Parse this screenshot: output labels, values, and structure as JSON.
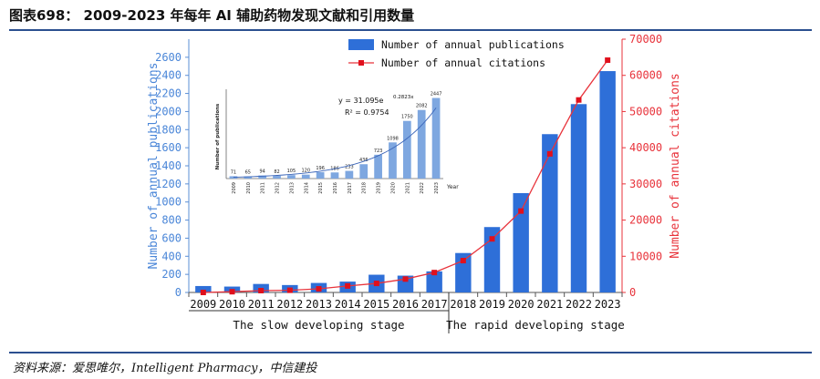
{
  "header": {
    "title": "图表698：   2009-2023 年每年 AI 辅助药物发现文献和引用数量"
  },
  "footer": {
    "source": "资料来源：爱思唯尔，Intelligent Pharmacy，中信建投"
  },
  "chart_data": [
    {
      "type": "bar+line",
      "categories": [
        "2009",
        "2010",
        "2011",
        "2012",
        "2013",
        "2014",
        "2015",
        "2016",
        "2017",
        "2018",
        "2019",
        "2020",
        "2021",
        "2022",
        "2023"
      ],
      "series": [
        {
          "name": "Number of annual publications",
          "type": "bar",
          "axis": "left",
          "color": "#2e6fd8",
          "values": [
            71,
            65,
            94,
            82,
            105,
            120,
            196,
            186,
            233,
            436,
            723,
            1098,
            1750,
            2082,
            2447
          ]
        },
        {
          "name": "Number of annual citations",
          "type": "line",
          "axis": "right",
          "color": "#e8333b",
          "values": [
            0,
            200,
            500,
            600,
            1000,
            1800,
            2500,
            3700,
            5500,
            8800,
            14800,
            22500,
            38300,
            53200,
            64200
          ]
        }
      ],
      "ylabel": "Number of annual publications",
      "y2label": "Number of annual citations",
      "ylim": [
        0,
        2800
      ],
      "y2lim": [
        0,
        70000
      ],
      "yticks": [
        0,
        200,
        400,
        600,
        800,
        1000,
        1200,
        1400,
        1600,
        1800,
        2000,
        2200,
        2400,
        2600
      ],
      "y2ticks": [
        0,
        10000,
        20000,
        30000,
        40000,
        50000,
        60000,
        70000
      ],
      "grid": false,
      "legend": "top-center",
      "stages": [
        {
          "label": "The slow developing stage",
          "from": "2009",
          "to": "2017"
        },
        {
          "label": "The rapid developing stage",
          "from": "2018",
          "to": "2023"
        }
      ]
    },
    {
      "type": "bar",
      "role": "inset",
      "categories": [
        "2009",
        "2010",
        "2011",
        "2012",
        "2013",
        "2014",
        "2015",
        "2016",
        "2017",
        "2018",
        "2019",
        "2020",
        "2021",
        "2022",
        "2023"
      ],
      "values": [
        71,
        65,
        94,
        82,
        105,
        120,
        196,
        186,
        233,
        436,
        723,
        1098,
        1750,
        2082,
        2447
      ],
      "ylabel": "Number of publications",
      "xlabel": "Year",
      "fit_equation": "y = 31.095e",
      "fit_exponent": "0.2823x",
      "r_squared": "R² = 0.9754"
    }
  ]
}
